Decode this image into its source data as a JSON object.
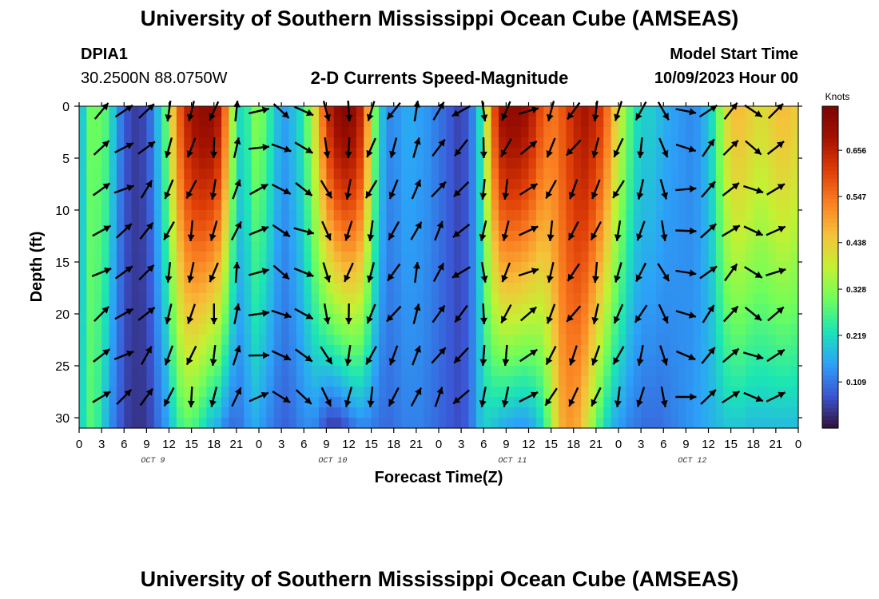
{
  "page": {
    "title_top": "University of Southern Mississippi Ocean Cube (AMSEAS)",
    "title_bottom": "University of Southern Mississippi Ocean Cube (AMSEAS)",
    "station": "DPIA1",
    "coords": "30.2500N  88.0750W",
    "subtitle": "2-D Currents Speed-Magnitude",
    "model_label": "Model Start Time",
    "model_time": "10/09/2023 Hour 00"
  },
  "chart_data": {
    "type": "heatmap",
    "title": "2-D Currents Speed-Magnitude",
    "xlabel": "Forecast Time(Z)",
    "ylabel": "Depth (ft)",
    "x_ticks": [
      "0",
      "3",
      "6",
      "9",
      "12",
      "15",
      "18",
      "21",
      "0",
      "3",
      "6",
      "9",
      "12",
      "15",
      "18",
      "21",
      "0",
      "3",
      "6",
      "9",
      "12",
      "15",
      "18",
      "21",
      "0",
      "3",
      "6",
      "9",
      "12",
      "15",
      "18",
      "21",
      "0"
    ],
    "day_labels": [
      "OCT 9",
      "OCT 10",
      "OCT 11",
      "OCT 12"
    ],
    "y_ticks": [
      0,
      5,
      10,
      15,
      20,
      25,
      30
    ],
    "ylim": [
      0,
      31
    ],
    "xlim_hours": [
      0,
      96
    ],
    "colorbar": {
      "unit": "Knots",
      "ticks": [
        "0.656",
        "0.547",
        "0.438",
        "0.328",
        "0.219",
        "0.109"
      ],
      "range": [
        0.0,
        0.76
      ],
      "colors": [
        "#30123b",
        "#3b55d4",
        "#2ca2f8",
        "#1be5b5",
        "#6efe5b",
        "#c4f133",
        "#f5c23a",
        "#fb8022",
        "#df3e07",
        "#a51200",
        "#7a0403"
      ]
    },
    "speed_profile_hours": [
      0,
      1,
      2,
      3,
      4,
      5,
      6,
      7,
      8,
      9,
      10,
      11,
      12,
      13,
      14,
      15,
      16,
      17,
      18,
      19,
      20,
      21,
      22,
      23,
      24,
      25,
      26,
      27,
      28,
      29,
      30,
      31,
      32,
      33,
      34,
      35,
      36,
      37,
      38,
      39,
      40,
      41,
      42,
      43,
      44,
      45,
      46,
      47,
      48,
      49,
      50,
      51,
      52,
      53,
      54,
      55,
      56,
      57,
      58,
      59,
      60,
      61,
      62,
      63,
      64,
      65,
      66,
      67,
      68,
      69,
      70,
      71,
      72,
      73,
      74,
      75,
      76,
      77,
      78,
      79,
      80,
      81,
      82,
      83,
      84,
      85,
      86,
      87,
      88,
      89,
      90,
      91,
      92,
      93,
      94,
      95,
      96
    ],
    "speed_surface_knots": [
      0.2,
      0.3,
      0.3,
      0.28,
      0.2,
      0.12,
      0.07,
      0.05,
      0.06,
      0.1,
      0.18,
      0.28,
      0.45,
      0.58,
      0.66,
      0.7,
      0.72,
      0.72,
      0.68,
      0.55,
      0.35,
      0.22,
      0.25,
      0.32,
      0.3,
      0.24,
      0.18,
      0.15,
      0.18,
      0.22,
      0.3,
      0.42,
      0.55,
      0.66,
      0.72,
      0.74,
      0.72,
      0.66,
      0.5,
      0.3,
      0.18,
      0.13,
      0.14,
      0.16,
      0.16,
      0.15,
      0.14,
      0.12,
      0.1,
      0.08,
      0.06,
      0.07,
      0.12,
      0.22,
      0.42,
      0.6,
      0.7,
      0.72,
      0.72,
      0.7,
      0.66,
      0.6,
      0.56,
      0.55,
      0.58,
      0.62,
      0.66,
      0.68,
      0.66,
      0.62,
      0.55,
      0.45,
      0.36,
      0.28,
      0.22,
      0.2,
      0.2,
      0.18,
      0.16,
      0.15,
      0.14,
      0.13,
      0.14,
      0.17,
      0.22,
      0.32,
      0.42,
      0.46,
      0.46,
      0.44,
      0.42,
      0.42,
      0.44,
      0.46,
      0.46,
      0.44,
      0.42
    ],
    "speed_bottom_knots": [
      0.22,
      0.28,
      0.25,
      0.18,
      0.12,
      0.08,
      0.05,
      0.04,
      0.04,
      0.06,
      0.1,
      0.14,
      0.2,
      0.26,
      0.28,
      0.26,
      0.22,
      0.18,
      0.16,
      0.12,
      0.1,
      0.11,
      0.14,
      0.16,
      0.14,
      0.12,
      0.1,
      0.09,
      0.1,
      0.12,
      0.13,
      0.12,
      0.08,
      0.05,
      0.05,
      0.07,
      0.1,
      0.12,
      0.12,
      0.11,
      0.1,
      0.1,
      0.11,
      0.12,
      0.12,
      0.12,
      0.11,
      0.1,
      0.09,
      0.08,
      0.07,
      0.08,
      0.12,
      0.18,
      0.2,
      0.18,
      0.16,
      0.15,
      0.14,
      0.14,
      0.16,
      0.2,
      0.28,
      0.4,
      0.48,
      0.5,
      0.48,
      0.42,
      0.34,
      0.26,
      0.2,
      0.16,
      0.14,
      0.12,
      0.11,
      0.1,
      0.1,
      0.1,
      0.11,
      0.12,
      0.13,
      0.14,
      0.15,
      0.16,
      0.17,
      0.18,
      0.19,
      0.19,
      0.19,
      0.18,
      0.18,
      0.18,
      0.18,
      0.18,
      0.18,
      0.18,
      0.18
    ],
    "vector_hours": [
      3,
      6,
      9,
      12,
      15,
      18,
      21,
      24,
      27,
      30,
      33,
      36,
      39,
      42,
      45,
      48,
      51,
      54,
      57,
      60,
      63,
      66,
      69,
      72,
      75,
      78,
      81,
      84,
      87,
      90,
      93
    ],
    "vector_depths_ft": [
      0,
      4,
      8,
      12,
      16,
      20,
      24,
      28
    ],
    "vector_direction_deg": [
      55,
      60,
      40,
      200,
      195,
      195,
      15,
      75,
      120,
      120,
      160,
      190,
      200,
      210,
      20,
      30,
      230,
      180,
      200,
      60,
      200,
      210,
      200,
      200,
      200,
      160,
      100,
      45,
      45,
      120,
      60
    ]
  }
}
